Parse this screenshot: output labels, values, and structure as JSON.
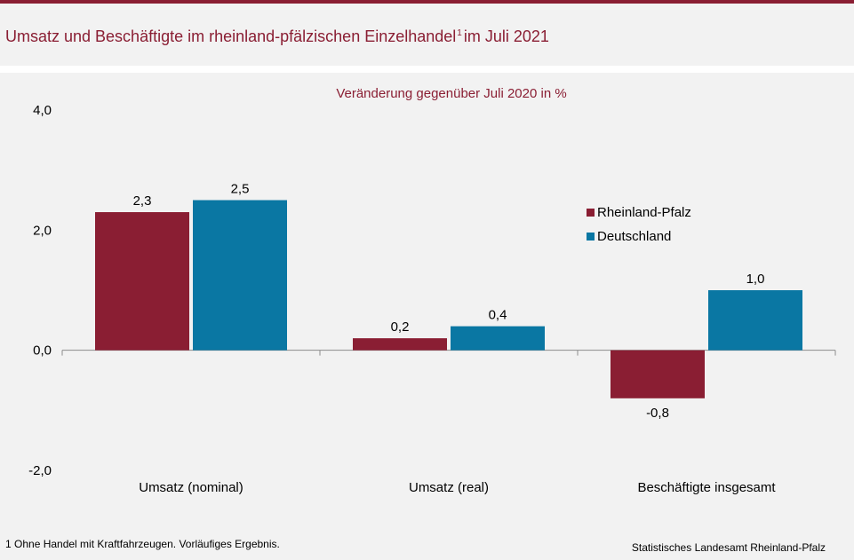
{
  "title": {
    "main": "Umsatz und Beschäftigte im rheinland-pfälzischen Einzelhandel",
    "sup": "1",
    "suffix": "im Juli 2021"
  },
  "footnote": "1 Ohne Handel mit Kraftfahrzeugen.  Vorläufiges Ergebnis.",
  "source": "Statistisches Landesamt Rheinland-Pfalz",
  "colors": {
    "accent": "#8a1e33",
    "rlp": "#8a1e33",
    "de": "#0a77a3"
  },
  "chart_data": {
    "type": "bar",
    "subtitle": "Veränderung gegenüber Juli 2020 in %",
    "categories": [
      "Umsatz (nominal)",
      "Umsatz (real)",
      "Beschäftigte insgesamt"
    ],
    "series": [
      {
        "name": "Rheinland-Pfalz",
        "values": [
          2.3,
          0.2,
          -0.8
        ],
        "labels": [
          "2,3",
          "0,2",
          "-0,8"
        ],
        "color": "#8a1e33"
      },
      {
        "name": "Deutschland",
        "values": [
          2.5,
          0.4,
          1.0
        ],
        "labels": [
          "2,5",
          "0,4",
          "1,0"
        ],
        "color": "#0a77a3"
      }
    ],
    "ylim": [
      -2,
      4
    ],
    "yticks": [
      4,
      2,
      0,
      -2
    ],
    "ytick_labels": [
      "4,0",
      "2,0",
      "0,0",
      "-2,0"
    ],
    "grid": false,
    "legend_position": "right"
  }
}
